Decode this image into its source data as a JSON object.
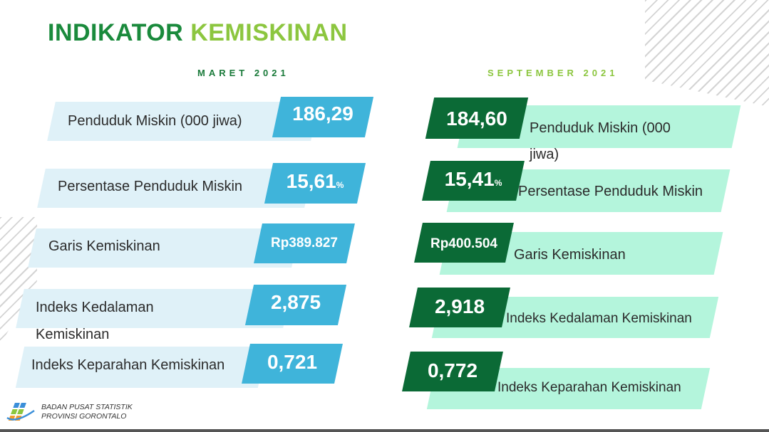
{
  "title": {
    "part1": "INDIKATOR",
    "part2": "KEMISKINAN"
  },
  "left_header": "MARET 2021",
  "right_header": "SEPTEMBER 2021",
  "left": {
    "r1_label": "Penduduk Miskin (000 jiwa)",
    "r1_value": "186,29",
    "r2_label": "Persentase Penduduk Miskin",
    "r2_value": "15,61",
    "r2_unit": "%",
    "r3_label": "Garis Kemiskinan",
    "r3_value": "Rp389.827",
    "r4_label_a": "Indeks Kedalaman",
    "r4_label_b": "Kemiskinan",
    "r4_value": "2,875",
    "r5_label": "Indeks Keparahan Kemiskinan",
    "r5_value": "0,721"
  },
  "right": {
    "r1_label_a": "Penduduk Miskin (000",
    "r1_label_b": "jiwa)",
    "r1_value": "184,60",
    "r2_label": "Persentase Penduduk Miskin",
    "r2_value": "15,41",
    "r2_unit": "%",
    "r3_label": "Garis Kemiskinan",
    "r3_value": "Rp400.504",
    "r4_label": "Indeks Kedalaman Kemiskinan",
    "r4_value": "2,918",
    "r5_label": "Indeks Keparahan Kemiskinan",
    "r5_value": "0,772"
  },
  "footer": {
    "org_line1": "BADAN PUSAT STATISTIK",
    "org_line2": "PROVINSI GORONTALO",
    "logo_icon": "bps-logo-icon"
  },
  "colors": {
    "title_dark": "#1a8a3c",
    "title_light": "#8cc63f",
    "left_value_bg": "#3fb4da",
    "right_value_bg": "#0b6a36",
    "left_bar_bg": "#dff1f8",
    "right_bar_bg": "#b4f5dc"
  }
}
